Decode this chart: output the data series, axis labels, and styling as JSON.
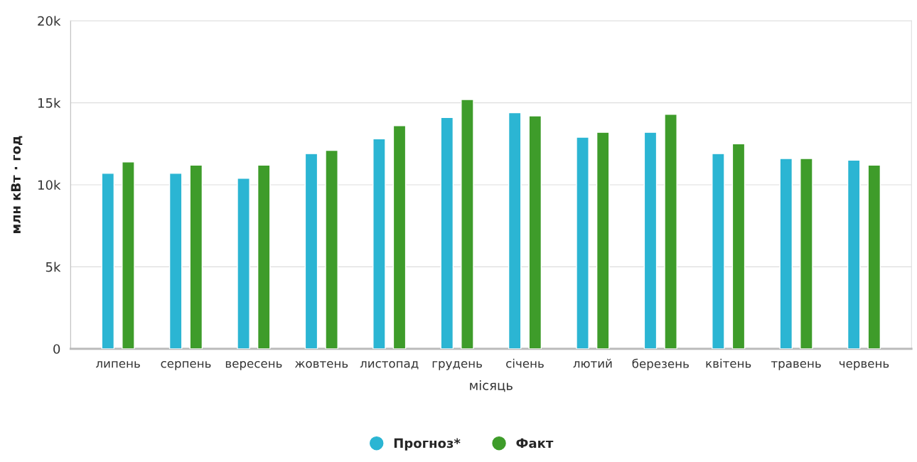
{
  "chart_data": {
    "type": "bar",
    "xlabel": "місяць",
    "ylabel": "млн кВт · год",
    "categories": [
      "липень",
      "серпень",
      "вересень",
      "жовтень",
      "листопад",
      "грудень",
      "січень",
      "лютий",
      "березень",
      "квітень",
      "травень",
      "червень"
    ],
    "series": [
      {
        "name": "Прогноз*",
        "color": "#2bb5d3",
        "values": [
          10700,
          10700,
          10400,
          11900,
          12800,
          14100,
          14400,
          12900,
          13200,
          11900,
          11600,
          11500
        ]
      },
      {
        "name": "Факт",
        "color": "#3e9c2a",
        "values": [
          11400,
          11200,
          11200,
          12100,
          13600,
          15200,
          14200,
          13200,
          14300,
          12500,
          11600,
          11200
        ]
      }
    ],
    "ylim": [
      0,
      20000
    ],
    "yticks": [
      0,
      {
        "value": 5000,
        "label": "5k"
      },
      {
        "value": 10000,
        "label": "10k"
      },
      {
        "value": 15000,
        "label": "15k"
      },
      {
        "value": 20000,
        "label": "20k"
      }
    ],
    "grid": "y",
    "legend": "bottom",
    "marker": "circle"
  }
}
